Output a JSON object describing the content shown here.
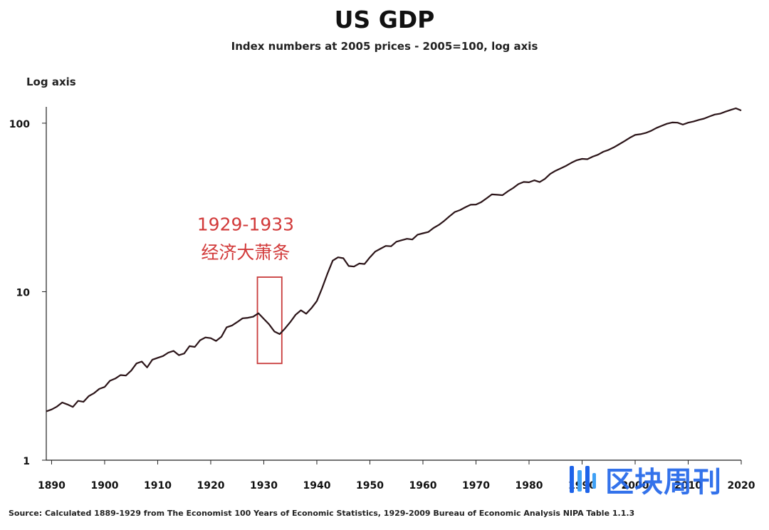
{
  "chart_data": {
    "type": "line",
    "title": "US GDP",
    "subtitle": "Index numbers at 2005 prices - 2005=100, log axis",
    "ylabel": "Log axis",
    "xlabel": "",
    "yscale": "log",
    "xlim": [
      1889,
      2020
    ],
    "ylim": [
      1,
      125
    ],
    "x_ticks": [
      1890,
      1900,
      1910,
      1920,
      1930,
      1940,
      1950,
      1960,
      1970,
      1980,
      1990,
      2000,
      2010,
      2020
    ],
    "y_ticks": [
      1,
      10,
      100
    ],
    "x_tick_labels": [
      "1890",
      "1900",
      "1910",
      "1920",
      "1930",
      "1940",
      "1950",
      "1960",
      "1970",
      "1980",
      "1990",
      "2000",
      "2010",
      "2020"
    ],
    "y_tick_labels": [
      "1",
      "10",
      "100"
    ],
    "grid": false,
    "series": [
      {
        "color": "#2b1418",
        "x": [
          1889,
          1890,
          1891,
          1892,
          1893,
          1894,
          1895,
          1896,
          1897,
          1898,
          1899,
          1900,
          1901,
          1902,
          1903,
          1904,
          1905,
          1906,
          1907,
          1908,
          1909,
          1910,
          1911,
          1912,
          1913,
          1914,
          1915,
          1916,
          1917,
          1918,
          1919,
          1920,
          1921,
          1922,
          1923,
          1924,
          1925,
          1926,
          1927,
          1928,
          1929,
          1930,
          1931,
          1932,
          1933,
          1934,
          1935,
          1936,
          1937,
          1938,
          1939,
          1940,
          1941,
          1942,
          1943,
          1944,
          1945,
          1946,
          1947,
          1948,
          1949,
          1950,
          1951,
          1952,
          1953,
          1954,
          1955,
          1956,
          1957,
          1958,
          1959,
          1960,
          1961,
          1962,
          1963,
          1964,
          1965,
          1966,
          1967,
          1968,
          1969,
          1970,
          1971,
          1972,
          1973,
          1974,
          1975,
          1976,
          1977,
          1978,
          1979,
          1980,
          1981,
          1982,
          1983,
          1984,
          1985,
          1986,
          1987,
          1988,
          1989,
          1990,
          1991,
          1992,
          1993,
          1994,
          1995,
          1996,
          1997,
          1998,
          1999,
          2000,
          2001,
          2002,
          2003,
          2004,
          2005,
          2006,
          2007,
          2008,
          2009,
          2010,
          2011,
          2012,
          2013,
          2014,
          2015,
          2016,
          2017,
          2018,
          2019,
          2020
        ],
        "values": [
          1.95,
          2.0,
          2.08,
          2.2,
          2.14,
          2.07,
          2.25,
          2.22,
          2.4,
          2.5,
          2.65,
          2.72,
          2.96,
          3.05,
          3.2,
          3.18,
          3.4,
          3.75,
          3.85,
          3.55,
          3.95,
          4.05,
          4.15,
          4.35,
          4.45,
          4.2,
          4.3,
          4.75,
          4.7,
          5.15,
          5.35,
          5.3,
          5.1,
          5.4,
          6.15,
          6.3,
          6.6,
          6.95,
          7.0,
          7.1,
          7.45,
          6.9,
          6.4,
          5.8,
          5.6,
          6.05,
          6.6,
          7.3,
          7.75,
          7.4,
          8.0,
          8.8,
          10.5,
          12.8,
          15.3,
          16.0,
          15.8,
          14.2,
          14.1,
          14.7,
          14.6,
          16.0,
          17.3,
          18.0,
          18.7,
          18.6,
          19.8,
          20.2,
          20.6,
          20.4,
          21.8,
          22.2,
          22.6,
          23.9,
          24.9,
          26.3,
          28.0,
          29.7,
          30.5,
          31.7,
          32.8,
          32.9,
          34.0,
          35.8,
          37.8,
          37.6,
          37.4,
          39.4,
          41.2,
          43.5,
          44.8,
          44.6,
          45.8,
          44.7,
          46.7,
          50.0,
          52.2,
          54.0,
          55.9,
          58.3,
          60.3,
          61.4,
          61.1,
          63.3,
          65.0,
          67.7,
          69.4,
          71.9,
          75.0,
          78.3,
          81.9,
          85.2,
          86.0,
          87.5,
          90.0,
          93.6,
          96.5,
          99.2,
          101.0,
          100.7,
          98.1,
          100.7,
          102.3,
          104.6,
          106.5,
          109.6,
          112.5,
          113.9,
          117.0,
          119.9,
          122.6,
          119.0
        ]
      }
    ],
    "annotations": [
      {
        "text": "1929-1933",
        "x": 1931,
        "y": 25
      },
      {
        "text": "经济大萧条",
        "x": 1931,
        "y": 17
      }
    ],
    "highlight": {
      "x_range": [
        1928.8,
        1933.4
      ],
      "y_range": [
        3.75,
        12.2
      ],
      "color": "#c83b3b"
    },
    "legend": "none"
  },
  "source_text": "Source: Calculated 1889-1929 from The Economist 100 Years of Economic Statistics, 1929-2009 Bureau of Economic Analysis NIPA Table 1.1.3",
  "watermark": {
    "text": "区块周刊",
    "icon": "blockchain-logo-icon",
    "color": "#1e63e9"
  }
}
